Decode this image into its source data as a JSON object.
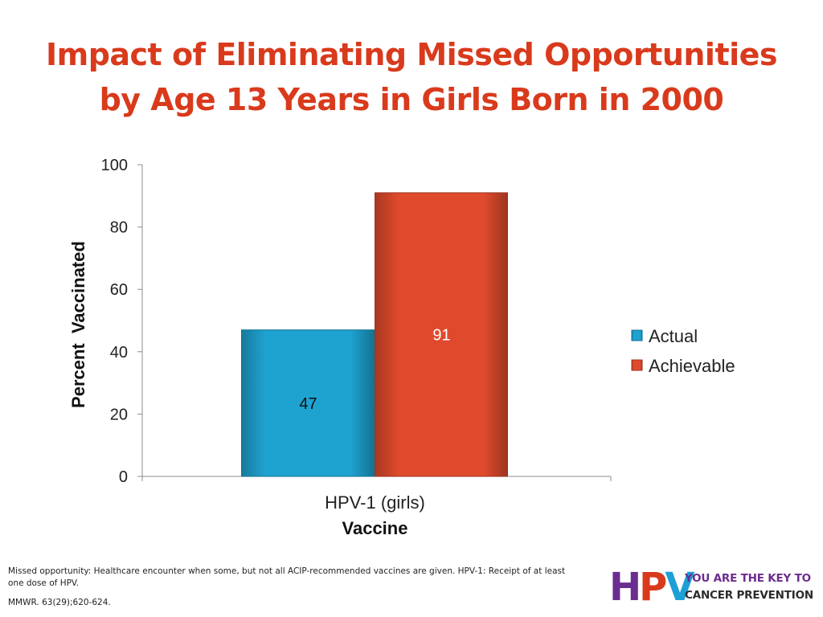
{
  "slide": {
    "title_line1": "Impact of Eliminating Missed Opportunities",
    "title_line2": "by Age 13 Years in Girls Born in 2000",
    "footnote": "Missed opportunity: Healthcare encounter when some, but not all ACIP-recommended vaccines are given. HPV-1: Receipt of at least one dose of HPV.",
    "citation": "MMWR. 63(29);620-624.",
    "logo": {
      "mark": "HPV",
      "tagline_line1": "YOU ARE THE KEY TO",
      "tagline_line2": "CANCER PREVENTION"
    }
  },
  "chart_data": {
    "type": "bar",
    "title": "",
    "xlabel": "Vaccine",
    "ylabel": "Percent  Vaccinated",
    "categories": [
      "HPV-1 (girls)"
    ],
    "series": [
      {
        "name": "Actual",
        "values": [
          47
        ],
        "color": "#1ea3d1"
      },
      {
        "name": "Achievable",
        "values": [
          91
        ],
        "color": "#e04a2c"
      }
    ],
    "ylim": [
      0,
      100
    ],
    "yticks": [
      0,
      20,
      40,
      60,
      80,
      100
    ],
    "data_labels": true,
    "grid": false,
    "legend_position": "right"
  }
}
